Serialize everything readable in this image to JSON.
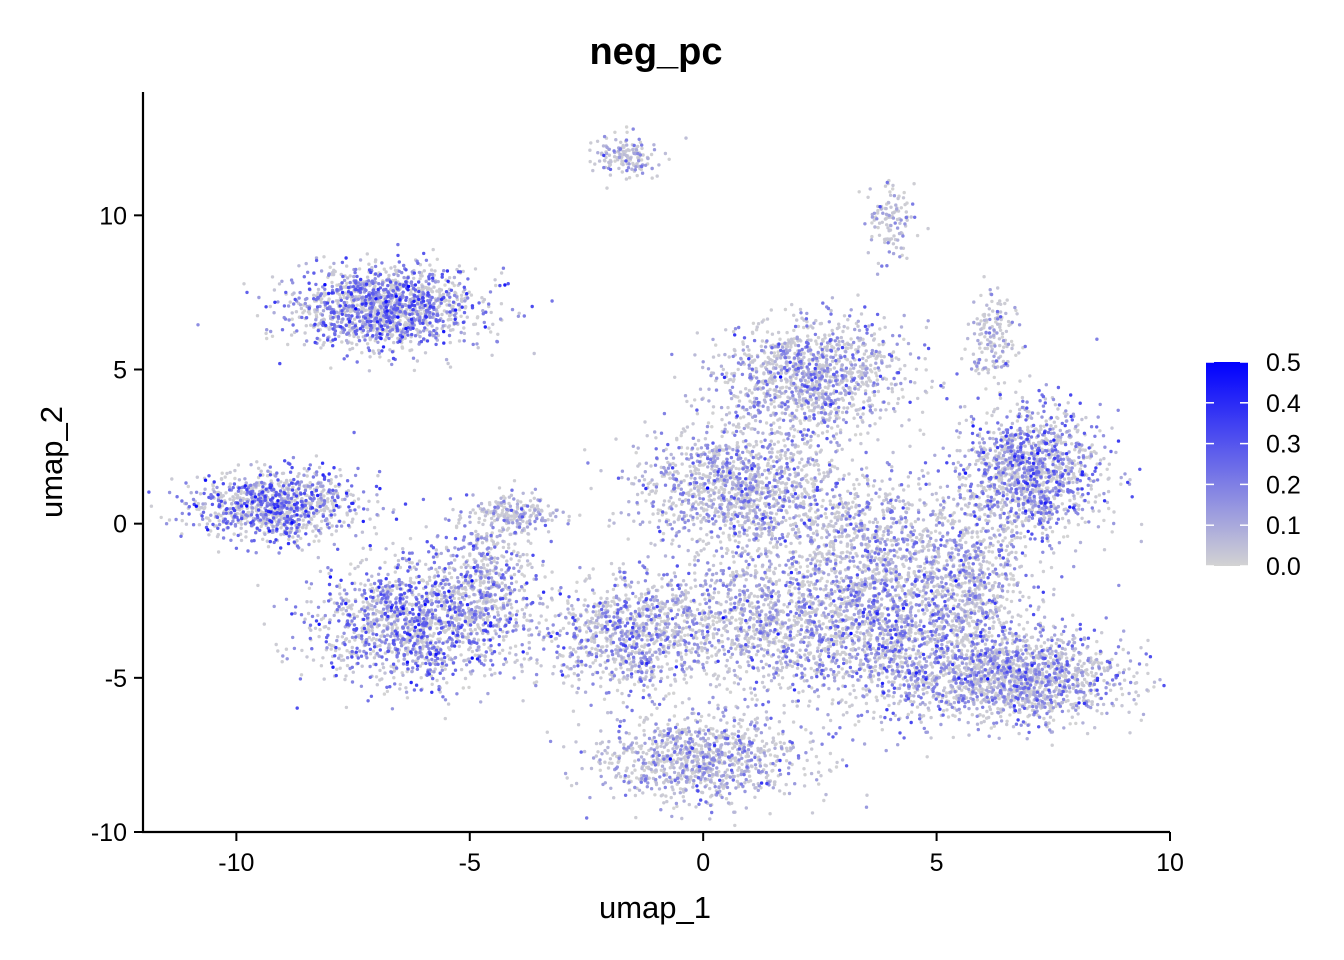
{
  "chart_data": {
    "type": "scatter",
    "title": "neg_pc",
    "xlabel": "umap_1",
    "ylabel": "umap_2",
    "xlim": [
      -12,
      10
    ],
    "ylim": [
      -10,
      14
    ],
    "x_ticks": [
      -10,
      -5,
      0,
      5,
      10
    ],
    "y_ticks": [
      -10,
      -5,
      0,
      5,
      10
    ],
    "x_tick_labels": [
      "-10",
      "-5",
      "0",
      "5",
      "10"
    ],
    "y_tick_labels": [
      "-10",
      "-5",
      "0",
      "5",
      "10"
    ],
    "grid": false,
    "legend_position": "right",
    "color_scale": {
      "min": 0.0,
      "max": 0.5,
      "low_color": "#d3d3d3",
      "high_color": "#0000ff",
      "ticks": [
        0.0,
        0.1,
        0.2,
        0.3,
        0.4,
        0.5
      ],
      "tick_labels": [
        "0.0",
        "0.1",
        "0.2",
        "0.3",
        "0.4",
        "0.5"
      ]
    },
    "clusters": [
      {
        "cx": -1.7,
        "cy": 11.9,
        "sx": 0.35,
        "sy": 0.3,
        "n": 160,
        "mean": 0.06
      },
      {
        "cx": 4.0,
        "cy": 9.8,
        "sx": 0.25,
        "sy": 0.6,
        "n": 120,
        "mean": 0.07
      },
      {
        "cx": -6.8,
        "cy": 7.0,
        "sx": 1.0,
        "sy": 0.65,
        "n": 1500,
        "mean": 0.2
      },
      {
        "cx": 6.2,
        "cy": 6.0,
        "sx": 0.25,
        "sy": 0.7,
        "n": 160,
        "mean": 0.05
      },
      {
        "cx": -9.2,
        "cy": 0.6,
        "sx": 0.9,
        "sy": 0.55,
        "n": 1000,
        "mean": 0.21
      },
      {
        "cx": -6.2,
        "cy": -3.2,
        "sx": 1.1,
        "sy": 1.0,
        "n": 1400,
        "mean": 0.2
      },
      {
        "cx": -4.6,
        "cy": -1.8,
        "sx": 0.55,
        "sy": 1.1,
        "n": 450,
        "mean": 0.13
      },
      {
        "cx": -4.0,
        "cy": 0.3,
        "sx": 0.5,
        "sy": 0.3,
        "n": 200,
        "mean": 0.05
      },
      {
        "cx": -1.6,
        "cy": -3.6,
        "sx": 0.9,
        "sy": 0.9,
        "n": 900,
        "mean": 0.14
      },
      {
        "cx": 0.0,
        "cy": -7.6,
        "sx": 1.1,
        "sy": 0.7,
        "n": 1000,
        "mean": 0.1
      },
      {
        "cx": 0.8,
        "cy": 1.2,
        "sx": 1.1,
        "sy": 1.0,
        "n": 1300,
        "mean": 0.12
      },
      {
        "cx": 2.3,
        "cy": 4.8,
        "sx": 1.0,
        "sy": 0.9,
        "n": 1200,
        "mean": 0.12
      },
      {
        "cx": 7.0,
        "cy": 1.7,
        "sx": 0.75,
        "sy": 1.0,
        "n": 1300,
        "mean": 0.17
      },
      {
        "cx": 4.0,
        "cy": -3.5,
        "sx": 1.3,
        "sy": 1.3,
        "n": 1600,
        "mean": 0.16
      },
      {
        "cx": 6.8,
        "cy": -5.0,
        "sx": 1.1,
        "sy": 0.7,
        "n": 1400,
        "mean": 0.13
      },
      {
        "cx": 1.2,
        "cy": -3.0,
        "sx": 1.2,
        "sy": 1.1,
        "n": 900,
        "mean": 0.1
      },
      {
        "cx": 3.6,
        "cy": -0.5,
        "sx": 1.0,
        "sy": 1.0,
        "n": 700,
        "mean": 0.1
      },
      {
        "cx": 5.8,
        "cy": -1.8,
        "sx": 0.6,
        "sy": 1.2,
        "n": 500,
        "mean": 0.11
      }
    ]
  }
}
